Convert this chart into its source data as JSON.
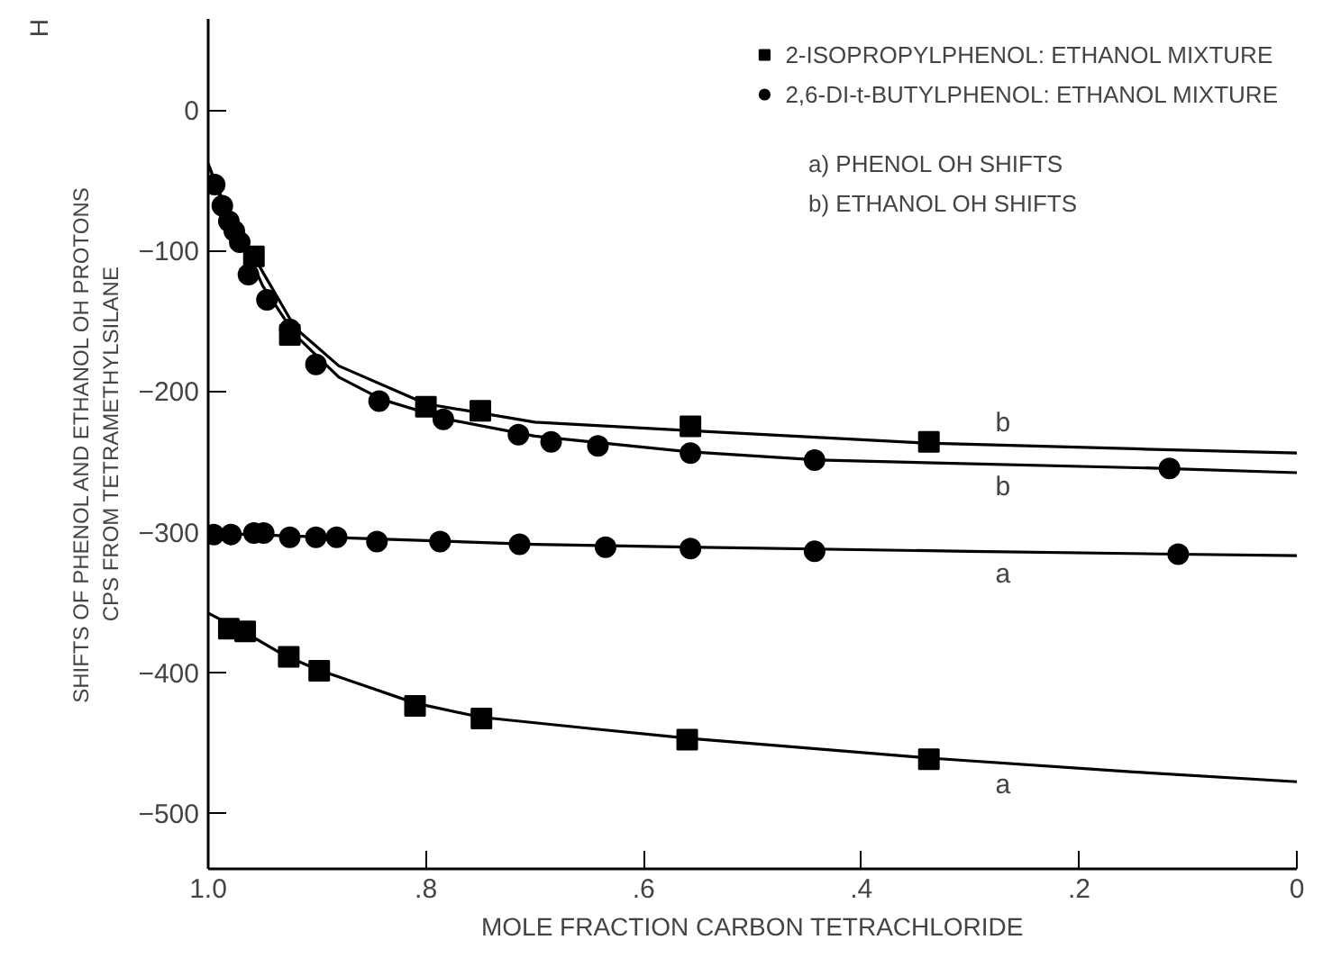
{
  "chart_data": {
    "type": "scatter",
    "xlabel": "MOLE FRACTION CARBON TETRACHLORIDE",
    "ylabel": "SHIFTS OF PHENOL AND ETHANOL OH PROTONS\nCPS FROM TETRAMETHYLSILANE",
    "xlim": [
      1.0,
      0
    ],
    "ylim": [
      -540,
      65
    ],
    "xticks": [
      {
        "value": 1.0,
        "label": "1.0"
      },
      {
        "value": 0.8,
        "label": ".8"
      },
      {
        "value": 0.6,
        "label": ".6"
      },
      {
        "value": 0.4,
        "label": ".4"
      },
      {
        "value": 0.2,
        "label": ".2"
      },
      0
    ],
    "yticks": [
      0,
      -100,
      -200,
      -300,
      -400,
      -500
    ],
    "grid": false,
    "legend": "top right",
    "annotations": [
      "a) PHENOL OH SHIFTS",
      "b) ETHANOL OH SHIFTS",
      "H"
    ],
    "series": [
      {
        "name": "2-ISOPROPYLPHENOL: ETHANOL MIXTURE",
        "marker": "square",
        "color": "#000000",
        "x": [
          0.958,
          0.925,
          0.8,
          0.75,
          0.557,
          0.338,
          0.981,
          0.966,
          0.926,
          0.898,
          0.81,
          0.749,
          0.56,
          0.338
        ],
        "values": [
          -104,
          -160,
          -211,
          -214,
          -225,
          -236,
          -369,
          -371,
          -389,
          -399,
          -424,
          -433,
          -448,
          -462
        ]
      },
      {
        "name": "2,6-DI-t-BUTYLPHENOL: ETHANOL MIXTURE",
        "marker": "circle",
        "color": "#000000",
        "x": [
          0.994,
          0.987,
          0.981,
          0.976,
          0.971,
          0.963,
          0.946,
          0.925,
          0.901,
          0.843,
          0.784,
          0.715,
          0.685,
          0.642,
          0.557,
          0.443,
          0.117,
          0.995,
          0.979,
          0.958,
          0.949,
          0.925,
          0.901,
          0.882,
          0.845,
          0.787,
          0.714,
          0.635,
          0.557,
          0.443,
          0.109
        ],
        "values": [
          -53,
          -68,
          -79,
          -86,
          -94,
          -117,
          -135,
          -156,
          -181,
          -207,
          -220,
          -231,
          -236,
          -239,
          -244,
          -249,
          -255,
          -302,
          -302,
          -301,
          -301,
          -304,
          -304,
          -304,
          -307,
          -307,
          -309,
          -311,
          -312,
          -314,
          -316
        ]
      },
      {
        "name": "b",
        "type": "line",
        "marker": "none",
        "line_style": "solid",
        "color": "#000000",
        "x": [
          1.0,
          0.99,
          0.97,
          0.95,
          0.92,
          0.88,
          0.8,
          0.7,
          0.56,
          0.34,
          0.15,
          0
        ],
        "values": [
          -38,
          -60,
          -88,
          -115,
          -155,
          -182,
          -209,
          -222,
          -228,
          -237,
          -241,
          -244
        ]
      },
      {
        "name": "b",
        "type": "line",
        "marker": "none",
        "line_style": "solid",
        "color": "#000000",
        "x": [
          1.0,
          0.99,
          0.97,
          0.95,
          0.92,
          0.88,
          0.84,
          0.78,
          0.7,
          0.56,
          0.44,
          0.12,
          0
        ],
        "values": [
          -38,
          -58,
          -90,
          -125,
          -160,
          -190,
          -206,
          -220,
          -232,
          -243,
          -249,
          -255,
          -258
        ]
      },
      {
        "name": "a",
        "type": "line",
        "marker": "none",
        "line_style": "solid",
        "color": "#000000",
        "x": [
          1.0,
          0.85,
          0.7,
          0.56,
          0.3,
          0.11,
          0
        ],
        "values": [
          -301,
          -305,
          -309,
          -311,
          -314,
          -316,
          -317
        ]
      },
      {
        "name": "a",
        "type": "line",
        "marker": "none",
        "line_style": "solid",
        "color": "#000000",
        "x": [
          1.0,
          0.97,
          0.93,
          0.9,
          0.81,
          0.75,
          0.65,
          0.56,
          0.34,
          0.15,
          0
        ],
        "values": [
          -358,
          -370,
          -388,
          -398,
          -422,
          -432,
          -440,
          -447,
          -461,
          -471,
          -478
        ]
      }
    ]
  }
}
